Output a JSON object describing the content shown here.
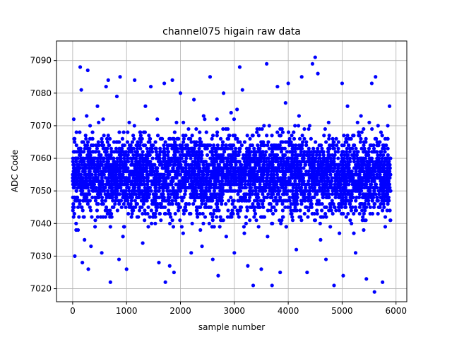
{
  "chart_data": {
    "type": "scatter",
    "title": "channel075 higain raw data",
    "xlabel": "sample number",
    "ylabel": "ADC Code",
    "xlim": [
      -300,
      6200
    ],
    "ylim": [
      7016,
      7096
    ],
    "xticks": [
      0,
      1000,
      2000,
      3000,
      4000,
      5000,
      6000
    ],
    "xtick_labels": [
      "0",
      "1000",
      "2000",
      "3000",
      "4000",
      "5000",
      "6000"
    ],
    "yticks": [
      7020,
      7030,
      7040,
      7050,
      7060,
      7070,
      7080,
      7090
    ],
    "ytick_labels": [
      "7020",
      "7030",
      "7040",
      "7050",
      "7060",
      "7070",
      "7080",
      "7090"
    ],
    "grid": true,
    "series": [
      {
        "name": "",
        "marker_color": "#0000ff",
        "points": [
          [
            5,
            7044
          ],
          [
            20,
            7072
          ],
          [
            40,
            7030
          ],
          [
            60,
            7055
          ],
          [
            80,
            7062
          ],
          [
            100,
            7038
          ],
          [
            120,
            7047
          ],
          [
            140,
            7088
          ],
          [
            160,
            7081
          ],
          [
            180,
            7028
          ],
          [
            200,
            7065
          ],
          [
            220,
            7035
          ],
          [
            240,
            7058
          ],
          [
            260,
            7073
          ],
          [
            280,
            7087
          ],
          [
            290,
            7026
          ],
          [
            300,
            7049
          ],
          [
            340,
            7033
          ],
          [
            380,
            7064
          ],
          [
            420,
            7041
          ],
          [
            460,
            7076
          ],
          [
            500,
            7053
          ],
          [
            540,
            7031
          ],
          [
            580,
            7067
          ],
          [
            620,
            7082
          ],
          [
            660,
            7084
          ],
          [
            700,
            7022
          ],
          [
            740,
            7045
          ],
          [
            780,
            7057
          ],
          [
            820,
            7079
          ],
          [
            860,
            7029
          ],
          [
            880,
            7085
          ],
          [
            900,
            7061
          ],
          [
            950,
            7039
          ],
          [
            1000,
            7026
          ],
          [
            1050,
            7071
          ],
          [
            1100,
            7050
          ],
          [
            1150,
            7084
          ],
          [
            1200,
            7046
          ],
          [
            1250,
            7068
          ],
          [
            1300,
            7034
          ],
          [
            1350,
            7076
          ],
          [
            1400,
            7059
          ],
          [
            1450,
            7082
          ],
          [
            1500,
            7042
          ],
          [
            1550,
            7063
          ],
          [
            1600,
            7028
          ],
          [
            1650,
            7051
          ],
          [
            1700,
            7083
          ],
          [
            1720,
            7022
          ],
          [
            1800,
            7027
          ],
          [
            1850,
            7084
          ],
          [
            1880,
            7025
          ],
          [
            1950,
            7066
          ],
          [
            2000,
            7080
          ],
          [
            2050,
            7037
          ],
          [
            2100,
            7054
          ],
          [
            2150,
            7069
          ],
          [
            2200,
            7031
          ],
          [
            2250,
            7078
          ],
          [
            2300,
            7044
          ],
          [
            2350,
            7060
          ],
          [
            2400,
            7033
          ],
          [
            2450,
            7072
          ],
          [
            2500,
            7048
          ],
          [
            2550,
            7085
          ],
          [
            2600,
            7029
          ],
          [
            2650,
            7063
          ],
          [
            2700,
            7024
          ],
          [
            2750,
            7057
          ],
          [
            2800,
            7080
          ],
          [
            2850,
            7036
          ],
          [
            2900,
            7067
          ],
          [
            2950,
            7042
          ],
          [
            3000,
            7031
          ],
          [
            3050,
            7075
          ],
          [
            3100,
            7088
          ],
          [
            3150,
            7081
          ],
          [
            3200,
            7052
          ],
          [
            3250,
            7027
          ],
          [
            3300,
            7064
          ],
          [
            3350,
            7021
          ],
          [
            3400,
            7058
          ],
          [
            3450,
            7039
          ],
          [
            3500,
            7026
          ],
          [
            3550,
            7070
          ],
          [
            3600,
            7089
          ],
          [
            3650,
            7046
          ],
          [
            3700,
            7021
          ],
          [
            3750,
            7061
          ],
          [
            3800,
            7082
          ],
          [
            3850,
            7025
          ],
          [
            3900,
            7054
          ],
          [
            3950,
            7077
          ],
          [
            4000,
            7083
          ],
          [
            4050,
            7043
          ],
          [
            4100,
            7068
          ],
          [
            4150,
            7032
          ],
          [
            4200,
            7073
          ],
          [
            4250,
            7085
          ],
          [
            4300,
            7049
          ],
          [
            4350,
            7025
          ],
          [
            4400,
            7061
          ],
          [
            4450,
            7089
          ],
          [
            4500,
            7091
          ],
          [
            4550,
            7086
          ],
          [
            4600,
            7035
          ],
          [
            4650,
            7058
          ],
          [
            4700,
            7029
          ],
          [
            4750,
            7071
          ],
          [
            4800,
            7044
          ],
          [
            4850,
            7021
          ],
          [
            4900,
            7064
          ],
          [
            4950,
            7037
          ],
          [
            5000,
            7083
          ],
          [
            5020,
            7024
          ],
          [
            5050,
            7052
          ],
          [
            5100,
            7076
          ],
          [
            5150,
            7041
          ],
          [
            5200,
            7067
          ],
          [
            5250,
            7031
          ],
          [
            5300,
            7059
          ],
          [
            5350,
            7073
          ],
          [
            5400,
            7038
          ],
          [
            5450,
            7023
          ],
          [
            5500,
            7056
          ],
          [
            5550,
            7083
          ],
          [
            5600,
            7019
          ],
          [
            5620,
            7085
          ],
          [
            5650,
            7047
          ],
          [
            5700,
            7065
          ],
          [
            5750,
            7022
          ],
          [
            5800,
            7039
          ],
          [
            5850,
            7061
          ],
          [
            5880,
            7076
          ],
          [
            5900,
            7050
          ],
          [
            70,
            7068
          ],
          [
            210,
            7059
          ],
          [
            330,
            7061
          ],
          [
            470,
            7049
          ],
          [
            610,
            7063
          ],
          [
            730,
            7055
          ],
          [
            840,
            7052
          ],
          [
            970,
            7058
          ],
          [
            1080,
            7062
          ],
          [
            1190,
            7048
          ],
          [
            1310,
            7057
          ],
          [
            1430,
            7066
          ],
          [
            1560,
            7053
          ],
          [
            1680,
            7050
          ],
          [
            1790,
            7060
          ],
          [
            1910,
            7047
          ],
          [
            2030,
            7064
          ],
          [
            2160,
            7056
          ],
          [
            2280,
            7051
          ],
          [
            2390,
            7062
          ],
          [
            2520,
            7045
          ],
          [
            2640,
            7059
          ],
          [
            2760,
            7063
          ],
          [
            2880,
            7052
          ],
          [
            3010,
            7057
          ],
          [
            3130,
            7048
          ],
          [
            3260,
            7061
          ],
          [
            3380,
            7054
          ],
          [
            3510,
            7050
          ],
          [
            3630,
            7065
          ],
          [
            3760,
            7047
          ],
          [
            3880,
            7058
          ],
          [
            4010,
            7053
          ],
          [
            4130,
            7062
          ],
          [
            4260,
            7049
          ],
          [
            4380,
            7056
          ],
          [
            4510,
            7060
          ],
          [
            4630,
            7046
          ],
          [
            4760,
            7063
          ],
          [
            4880,
            7051
          ],
          [
            5010,
            7058
          ],
          [
            5130,
            7054
          ],
          [
            5260,
            7061
          ],
          [
            5380,
            7048
          ],
          [
            5510,
            7057
          ],
          [
            5630,
            7052
          ],
          [
            5760,
            7064
          ],
          [
            5890,
            7055
          ]
        ]
      }
    ]
  }
}
